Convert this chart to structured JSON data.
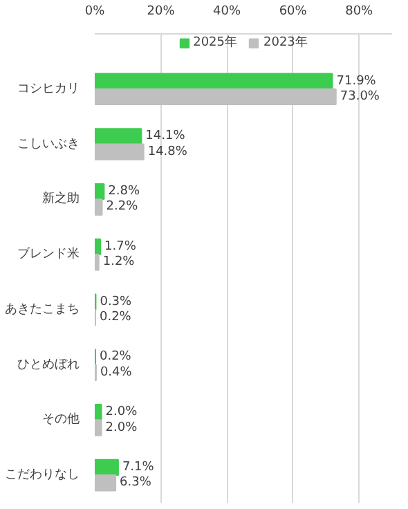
{
  "chart_data": {
    "type": "bar",
    "orientation": "horizontal",
    "categories": [
      "コシヒカリ",
      "こしいぶき",
      "新之助",
      "ブレンド米",
      "あきたこまち",
      "ひとめぼれ",
      "その他",
      "こだわりなし"
    ],
    "series": [
      {
        "name": "2025年",
        "color": "#3dcc50",
        "values": [
          71.9,
          14.1,
          2.8,
          1.7,
          0.3,
          0.2,
          2.0,
          7.1
        ],
        "value_labels": [
          "71.9%",
          "14.1%",
          "2.8%",
          "1.7%",
          "0.3%",
          "0.2%",
          "2.0%",
          "7.1%"
        ]
      },
      {
        "name": "2023年",
        "color": "#bfbfbf",
        "values": [
          73.0,
          14.8,
          2.2,
          1.2,
          0.2,
          0.4,
          2.0,
          6.3
        ],
        "value_labels": [
          "73.0%",
          "14.8%",
          "2.2%",
          "1.2%",
          "0.2%",
          "0.4%",
          "2.0%",
          "6.3%"
        ]
      }
    ],
    "xlim": [
      0,
      90
    ],
    "xticks": [
      {
        "value": 0,
        "label": "0%"
      },
      {
        "value": 20,
        "label": "20%"
      },
      {
        "value": 40,
        "label": "40%"
      },
      {
        "value": 60,
        "label": "60%"
      },
      {
        "value": 80,
        "label": "80%"
      }
    ],
    "grid": "x",
    "legend": "top"
  }
}
